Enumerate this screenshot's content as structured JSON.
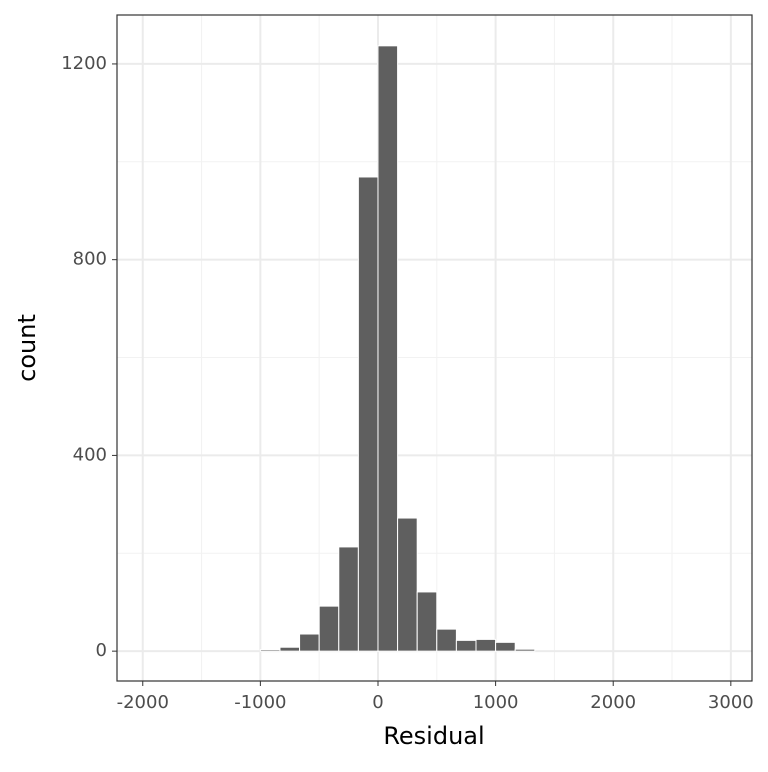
{
  "chart_data": {
    "type": "histogram",
    "x_label": "Residual",
    "y_label": "count",
    "bins": [
      -2000,
      -1833.33,
      -1666.67,
      -1500,
      -1333.33,
      -1166.67,
      -1000,
      -833.33,
      -666.67,
      -500,
      -333.33,
      -166.67,
      0,
      166.67,
      333.33,
      500,
      666.67,
      833.33,
      1000,
      1166.67,
      1333.33,
      1500,
      1666.67,
      1833.33,
      2000,
      2166.67,
      2333.33,
      2500,
      2666.67,
      2833.33,
      3000
    ],
    "values": [
      0,
      0,
      0,
      0,
      0,
      0,
      3,
      8,
      35,
      92,
      213,
      969,
      1237,
      272,
      121,
      45,
      22,
      24,
      18,
      4,
      0,
      0,
      0,
      0,
      0,
      0,
      0,
      0,
      0,
      0
    ],
    "color": "#5f5f5f",
    "xlim": [
      -2219,
      3180
    ],
    "ylim": [
      -61,
      1300
    ],
    "xticks": [
      -2000,
      -1000,
      0,
      1000,
      2000,
      3000
    ],
    "yticks": [
      0,
      400,
      800,
      1200
    ],
    "grid": true
  }
}
